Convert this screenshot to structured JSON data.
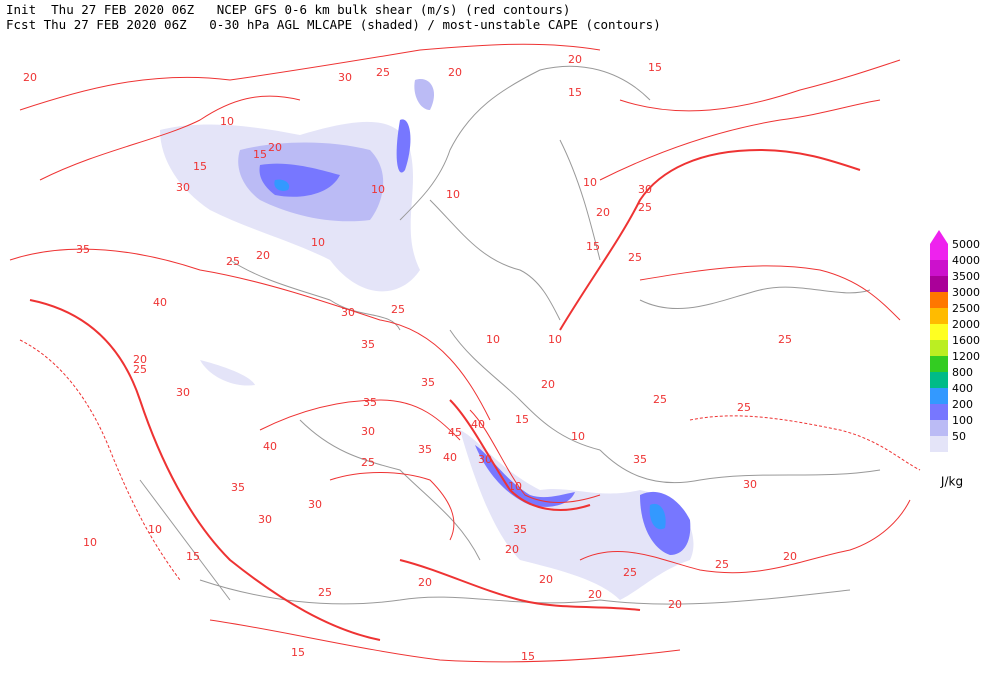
{
  "header": {
    "line1": "Init  Thu 27 FEB 2020 06Z   NCEP GFS 0-6 km bulk shear (m/s) (red contours)",
    "line2": "Fcst Thu 27 FEB 2020 06Z   0-30 hPa AGL MLCAPE (shaded) / most-unstable CAPE (contours)"
  },
  "legend": {
    "levels": [
      5000,
      4000,
      3500,
      3000,
      2500,
      2000,
      1600,
      1200,
      800,
      400,
      200,
      100,
      50
    ],
    "colors": [
      "#ee22ee",
      "#cc11cc",
      "#aa0099",
      "#ff7700",
      "#ffbb00",
      "#ffff22",
      "#bbee22",
      "#33cc22",
      "#00bb88",
      "#3399ff",
      "#7777ff",
      "#bbbbf5",
      "#e4e4f8"
    ],
    "unit": "J/kg"
  },
  "contour_labels": [
    "20",
    "30",
    "25",
    "20",
    "20",
    "15",
    "15",
    "10",
    "15",
    "30",
    "20",
    "15",
    "10",
    "10",
    "10",
    "30",
    "25",
    "20",
    "10",
    "35",
    "25",
    "20",
    "15",
    "25",
    "40",
    "25",
    "30",
    "10",
    "35",
    "10",
    "20",
    "25",
    "35",
    "20",
    "25",
    "30",
    "35",
    "25",
    "25",
    "40",
    "30",
    "15",
    "10",
    "45",
    "40",
    "35",
    "40",
    "35",
    "25",
    "30",
    "10",
    "35",
    "30",
    "30",
    "30",
    "10",
    "10",
    "35",
    "20",
    "20",
    "15",
    "20",
    "20",
    "25",
    "20",
    "25",
    "20",
    "15",
    "15",
    "25"
  ]
}
